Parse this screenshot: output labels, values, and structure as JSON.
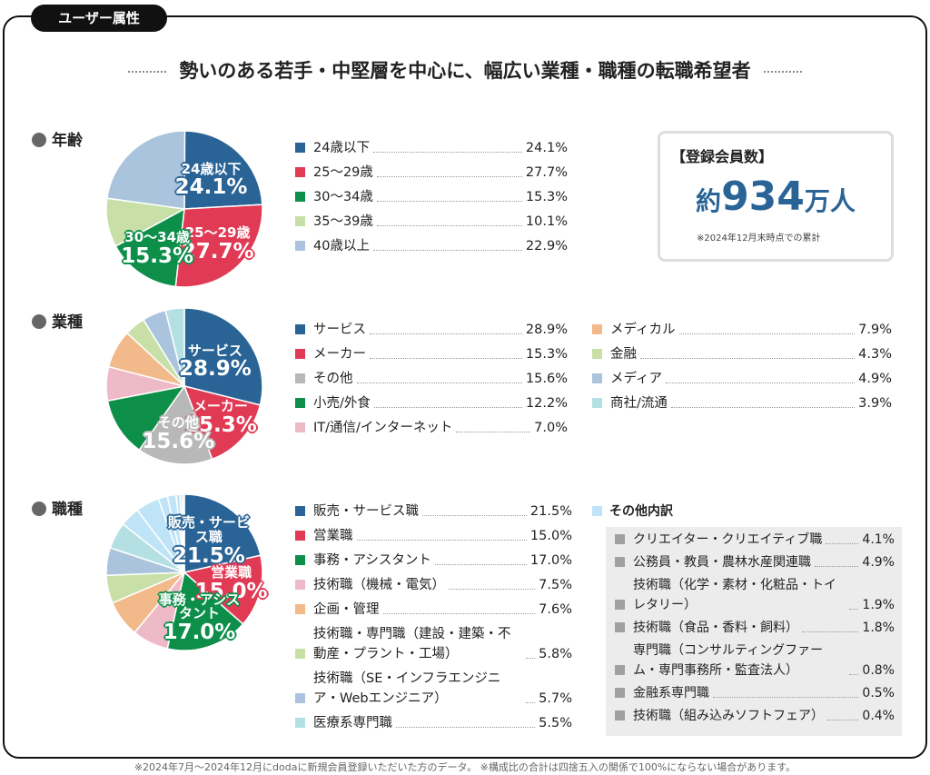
{
  "tag": "ユーザー属性",
  "headline": "勢いのある若手・中堅層を中心に、幅広い業種・職種の転職希望者",
  "members": {
    "label": "【登録会員数】",
    "prefix": "約",
    "number": "934",
    "unit": "万人",
    "note": "※2024年12月末時点での累計"
  },
  "footnote": "※2024年7月～2024年12月にdodaに新規会員登録いただいた方のデータ。 ※構成比の合計は四捨五入の関係で100%にならない場合があります。",
  "chart_data": [
    {
      "type": "pie",
      "title": "年齢",
      "legend_columns": 1,
      "categories": [
        "24歳以下",
        "25～29歳",
        "30～34歳",
        "35～39歳",
        "40歳以上"
      ],
      "values": [
        24.1,
        27.7,
        15.3,
        10.1,
        22.9
      ],
      "value_labels": [
        "24.1%",
        "27.7%",
        "15.3%",
        "10.1%",
        "22.9%"
      ],
      "colors": [
        "#2a6496",
        "#e03a55",
        "#0d8f4a",
        "#c8e0a8",
        "#a9c4dc"
      ]
    },
    {
      "type": "pie",
      "title": "業種",
      "legend_columns": 2,
      "categories": [
        "サービス",
        "メーカー",
        "その他",
        "小売/外食",
        "IT/通信/インターネット",
        "メディカル",
        "金融",
        "メディア",
        "商社/流通"
      ],
      "values": [
        28.9,
        15.3,
        15.6,
        12.2,
        7.0,
        7.9,
        4.3,
        4.9,
        3.9
      ],
      "value_labels": [
        "28.9%",
        "15.3%",
        "15.6%",
        "12.2%",
        "7.0%",
        "7.9%",
        "4.3%",
        "4.9%",
        "3.9%"
      ],
      "colors": [
        "#2a6496",
        "#e03a55",
        "#b8b8b8",
        "#0d8f4a",
        "#efbac7",
        "#f2b98a",
        "#c8e0a8",
        "#a9c4dc",
        "#b4e0e4"
      ]
    },
    {
      "type": "pie",
      "title": "職種",
      "legend_columns": 1,
      "categories": [
        "販売・サービス職",
        "営業職",
        "事務・アシスタント",
        "技術職（機械・電気）",
        "企画・管理",
        "技術職・専門職（建設・建築・不動産・プラント・工場）",
        "技術職（SE・インフラエンジニア・Webエンジニア）",
        "医療系専門職"
      ],
      "values": [
        21.5,
        15.0,
        17.0,
        7.5,
        7.6,
        5.8,
        5.7,
        5.5
      ],
      "value_labels": [
        "21.5%",
        "15.0%",
        "17.0%",
        "7.5%",
        "7.6%",
        "5.8%",
        "5.7%",
        "5.5%"
      ],
      "colors": [
        "#2a6496",
        "#e03a55",
        "#0d8f4a",
        "#efbac7",
        "#f2b98a",
        "#c8e0a8",
        "#a9c4dc",
        "#b4e0e4"
      ],
      "other": {
        "title": "その他内訳",
        "color": "#bfe4f7",
        "categories": [
          "クリエイター・クリエイティブ職",
          "公務員・教員・農林水産関連職",
          "技術職（化学・素材・化粧品・トイレタリー）",
          "技術職（食品・香料・飼料）",
          "専門職（コンサルティングファーム・専門事務所・監査法人）",
          "金融系専門職",
          "技術職（組み込みソフトフェア）"
        ],
        "values": [
          4.1,
          4.9,
          1.9,
          1.8,
          0.8,
          0.5,
          0.4
        ],
        "value_labels": [
          "4.1%",
          "4.9%",
          "1.9%",
          "1.8%",
          "0.8%",
          "0.5%",
          "0.4%"
        ]
      }
    }
  ]
}
